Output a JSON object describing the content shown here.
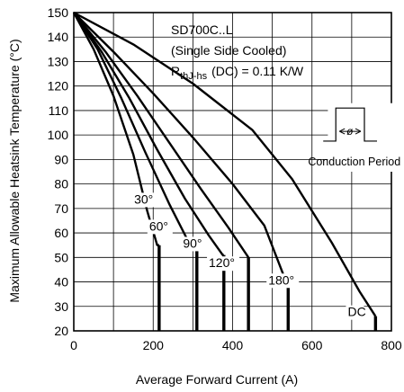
{
  "chart_data": {
    "type": "line",
    "title": "",
    "annotations": {
      "device": "SD700C..L",
      "cooling": "(Single Side Cooled)",
      "rth_prefix": "R",
      "rth_sub": "thJ-hs",
      "rth_suffix": "(DC) = 0.11 K/W",
      "conduction_label": "Conduction Period",
      "phi_symbol": "ø"
    },
    "xlabel": "Average Forward Current (A)",
    "ylabel": "Maximum Allowable Heatsink Temperature (°C)",
    "xlim": [
      0,
      800
    ],
    "ylim": [
      20,
      150
    ],
    "xticks": [
      0,
      200,
      400,
      600,
      800
    ],
    "yticks": [
      20,
      30,
      40,
      50,
      60,
      70,
      80,
      90,
      100,
      110,
      120,
      130,
      140,
      150
    ],
    "grid": true,
    "series": [
      {
        "name": "30°",
        "points": [
          [
            0,
            150
          ],
          [
            50,
            135
          ],
          [
            100,
            116
          ],
          [
            150,
            92
          ],
          [
            185,
            69
          ],
          [
            210,
            55
          ],
          [
            215,
            55
          ]
        ],
        "stub": [
          215,
          20,
          55
        ]
      },
      {
        "name": "60°",
        "points": [
          [
            0,
            150
          ],
          [
            60,
            135
          ],
          [
            120,
            115
          ],
          [
            180,
            93
          ],
          [
            240,
            72
          ],
          [
            290,
            56
          ],
          [
            305,
            53
          ],
          [
            310,
            53
          ]
        ],
        "stub": [
          310,
          20,
          53
        ]
      },
      {
        "name": "90°",
        "points": [
          [
            0,
            150
          ],
          [
            70,
            134
          ],
          [
            140,
            115
          ],
          [
            210,
            94
          ],
          [
            280,
            74
          ],
          [
            340,
            59
          ],
          [
            375,
            51
          ],
          [
            378,
            51
          ]
        ],
        "stub": [
          378,
          20,
          51
        ]
      },
      {
        "name": "120°",
        "points": [
          [
            0,
            150
          ],
          [
            80,
            134
          ],
          [
            160,
            116
          ],
          [
            240,
            97
          ],
          [
            320,
            78
          ],
          [
            390,
            62
          ],
          [
            440,
            50
          ]
        ],
        "stub": [
          440,
          20,
          50
        ]
      },
      {
        "name": "180°",
        "points": [
          [
            0,
            150
          ],
          [
            100,
            134
          ],
          [
            200,
            117
          ],
          [
            300,
            99
          ],
          [
            400,
            80
          ],
          [
            480,
            63
          ],
          [
            530,
            42
          ],
          [
            540,
            38
          ]
        ],
        "stub": [
          540,
          20,
          38
        ]
      },
      {
        "name": "DC",
        "points": [
          [
            0,
            150
          ],
          [
            150,
            137
          ],
          [
            300,
            121
          ],
          [
            450,
            102
          ],
          [
            550,
            82
          ],
          [
            650,
            56
          ],
          [
            720,
            36
          ],
          [
            760,
            26
          ]
        ],
        "stub": [
          760,
          20,
          26
        ]
      }
    ]
  }
}
